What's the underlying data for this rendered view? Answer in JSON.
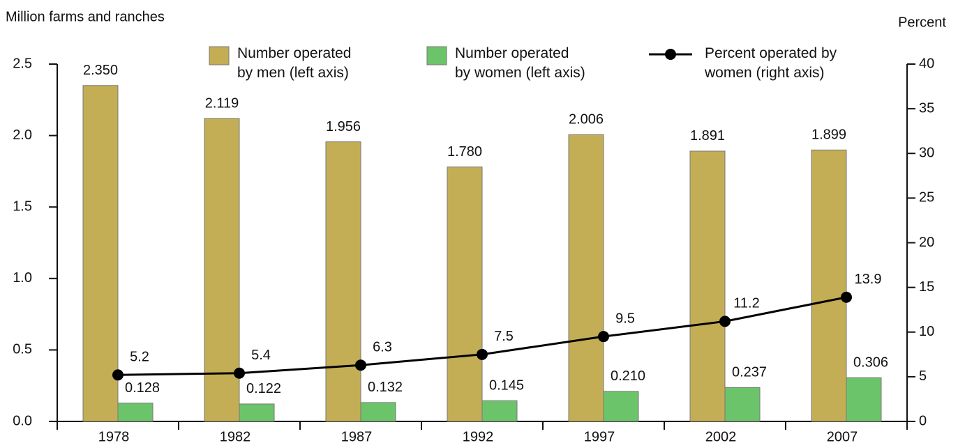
{
  "chart_data": {
    "type": "bar",
    "y_label": "Million farms and ranches",
    "y2_label": "Percent",
    "categories": [
      "1978",
      "1982",
      "1987",
      "1992",
      "1997",
      "2002",
      "2007"
    ],
    "series": [
      {
        "name": "Number operated by men (left axis)",
        "type": "bar",
        "color": "#c4ae55",
        "values": [
          2.35,
          2.119,
          1.956,
          1.78,
          2.006,
          1.891,
          1.899
        ],
        "value_labels": [
          "2.350",
          "2.119",
          "1.956",
          "1.780",
          "2.006",
          "1.891",
          "1.899"
        ]
      },
      {
        "name": "Number operated by women (left axis)",
        "type": "bar",
        "color": "#6cc46a",
        "values": [
          0.128,
          0.122,
          0.132,
          0.145,
          0.21,
          0.237,
          0.306
        ],
        "value_labels": [
          "0.128",
          "0.122",
          "0.132",
          "0.145",
          "0.210",
          "0.237",
          "0.306"
        ]
      },
      {
        "name": "Percent operated by women (right axis)",
        "type": "line",
        "axis": "y2",
        "color": "#000000",
        "values": [
          5.2,
          5.4,
          6.3,
          7.5,
          9.5,
          11.2,
          13.9
        ]
      }
    ],
    "ylim": [
      0,
      2.5
    ],
    "yticks": [
      {
        "value": 0,
        "label": "0.0"
      },
      {
        "value": 0.5,
        "label": "0.5"
      },
      {
        "value": 1,
        "label": "1.0"
      },
      {
        "value": 1.5,
        "label": "1.5"
      },
      {
        "value": 2,
        "label": "2.0"
      },
      {
        "value": 2.5,
        "label": "2.5"
      }
    ],
    "y2lim": [
      0,
      40
    ],
    "y2ticks": [
      0,
      5,
      10,
      15,
      20,
      25,
      30,
      35,
      40
    ],
    "grid": false
  }
}
